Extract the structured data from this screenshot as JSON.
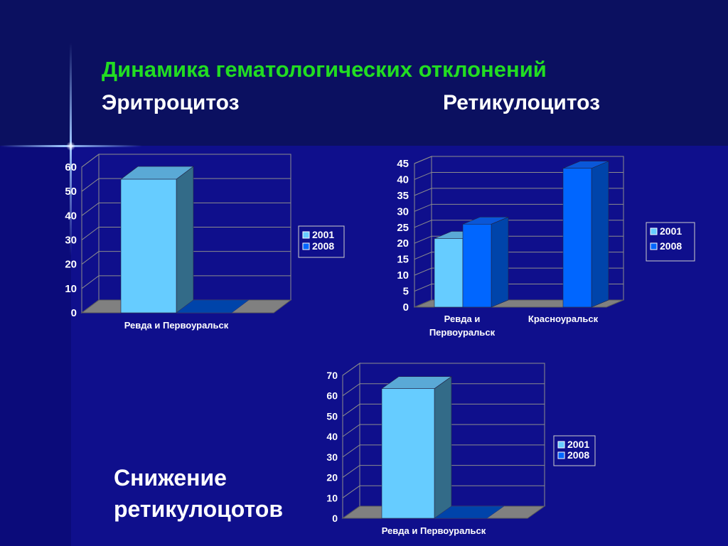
{
  "title": "Динамика гематологических отклонений",
  "subtitles": {
    "left": "Эритроцитоз",
    "right": "Ретикулоцитоз"
  },
  "note_lines": [
    "Снижение",
    "ретикулоцотов"
  ],
  "colors": {
    "series_2001": "#66ccff",
    "series_2008": "#0066ff",
    "title": "#22dd22",
    "background": "#0f0f8c"
  },
  "chart_data": [
    {
      "type": "bar",
      "title": "Эритроцитоз",
      "categories": [
        "Ревда и Первоуральск"
      ],
      "series": [
        {
          "name": "2001",
          "values": [
            55
          ]
        },
        {
          "name": "2008",
          "values": [
            0
          ]
        }
      ],
      "yticks": [
        "0",
        "10",
        "20",
        "30",
        "40",
        "50",
        "60"
      ],
      "ylim": [
        0,
        60
      ],
      "grid": true,
      "legend": "right"
    },
    {
      "type": "bar",
      "title": "Ретикулоцитоз",
      "categories": [
        "Ревда и Первоуральск",
        "Красноуральск"
      ],
      "category_label_lines": [
        [
          "Ревда и",
          "Первоуральск"
        ],
        [
          "Красноуральск"
        ]
      ],
      "series": [
        {
          "name": "2001",
          "values": [
            21.5,
            0
          ]
        },
        {
          "name": "2008",
          "values": [
            26,
            43.5
          ]
        }
      ],
      "yticks": [
        "0",
        "5",
        "10",
        "15",
        "20",
        "25",
        "30",
        "35",
        "40",
        "45"
      ],
      "ylim": [
        0,
        45
      ],
      "grid": true,
      "legend": "right"
    },
    {
      "type": "bar",
      "categories": [
        "Ревда и Первоуральск"
      ],
      "series": [
        {
          "name": "2001",
          "values": [
            63.5
          ]
        },
        {
          "name": "2008",
          "values": [
            0
          ]
        }
      ],
      "yticks": [
        "0",
        "10",
        "20",
        "30",
        "40",
        "50",
        "60",
        "70"
      ],
      "ylim": [
        0,
        70
      ],
      "grid": true,
      "legend": "right"
    }
  ]
}
